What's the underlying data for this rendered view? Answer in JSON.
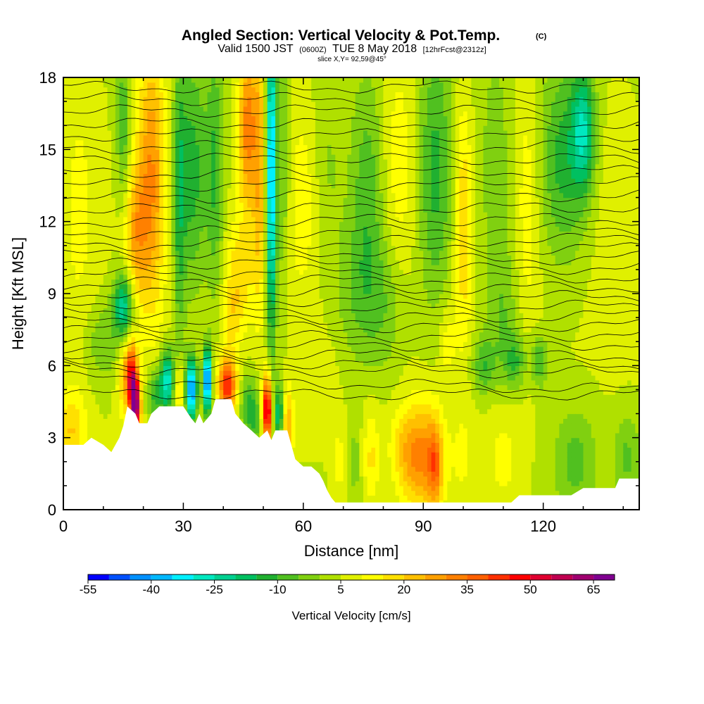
{
  "header": {
    "title": "Angled Section: Vertical Velocity & Pot.Temp.",
    "title_units": "(C)",
    "valid_prefix": "Valid 1500 JST",
    "valid_zulu": "(0600Z)",
    "valid_date": "TUE 8 May 2018",
    "forecast_note": "[12hrFcst@2312z]",
    "slice_note": "slice X,Y= 92,59@45°"
  },
  "chart_data": {
    "type": "heatmap",
    "xlabel": "Distance [nm]",
    "ylabel": "Height [Kft MSL]",
    "xlim": [
      0,
      144
    ],
    "ylim": [
      0,
      18
    ],
    "x_ticks": [
      0,
      30,
      60,
      90,
      120
    ],
    "x_tick_labels": [
      "0",
      "30",
      "60",
      "90",
      "120"
    ],
    "y_ticks": [
      0,
      3,
      6,
      9,
      12,
      15,
      18
    ],
    "y_tick_labels": [
      "0",
      "3",
      "6",
      "9",
      "12",
      "15",
      "18"
    ],
    "colorbar": {
      "title": "Vertical Velocity [cm/s]",
      "tick_values": [
        -55,
        -40,
        -25,
        -10,
        5,
        20,
        35,
        50,
        65
      ],
      "tick_labels": [
        "-55",
        "-40",
        "-25",
        "-10",
        "5",
        "20",
        "35",
        "50",
        "65"
      ],
      "levels": [
        -55,
        -50,
        -45,
        -40,
        -35,
        -30,
        -25,
        -20,
        -15,
        -10,
        -5,
        0,
        5,
        10,
        15,
        20,
        25,
        30,
        35,
        40,
        45,
        50,
        55,
        60,
        65,
        70
      ],
      "colors": [
        "#0000ff",
        "#0050ff",
        "#0090ff",
        "#00b8ff",
        "#00f0ff",
        "#00e8c0",
        "#00d090",
        "#00c060",
        "#20b030",
        "#50c020",
        "#80d010",
        "#b0e000",
        "#e0f000",
        "#ffff00",
        "#ffe000",
        "#ffc000",
        "#ffa000",
        "#ff8000",
        "#ff6000",
        "#ff3000",
        "#ff0000",
        "#e00030",
        "#c00050",
        "#a00070",
        "#800090"
      ]
    },
    "terrain": [
      [
        0,
        2.7
      ],
      [
        5,
        2.7
      ],
      [
        7,
        3.0
      ],
      [
        10,
        2.7
      ],
      [
        12,
        2.4
      ],
      [
        14,
        3.0
      ],
      [
        15,
        3.5
      ],
      [
        16,
        4.3
      ],
      [
        18,
        4.0
      ],
      [
        19,
        3.6
      ],
      [
        21,
        3.6
      ],
      [
        22,
        4.0
      ],
      [
        24,
        4.3
      ],
      [
        30,
        4.3
      ],
      [
        32,
        3.8
      ],
      [
        33,
        3.6
      ],
      [
        34,
        4.0
      ],
      [
        35,
        3.6
      ],
      [
        37,
        4.0
      ],
      [
        38,
        4.6
      ],
      [
        42,
        4.6
      ],
      [
        43,
        4.0
      ],
      [
        45,
        3.6
      ],
      [
        47,
        3.3
      ],
      [
        49,
        3.0
      ],
      [
        51,
        3.3
      ],
      [
        52,
        2.9
      ],
      [
        53,
        3.3
      ],
      [
        56,
        3.3
      ],
      [
        58,
        2.1
      ],
      [
        60,
        1.8
      ],
      [
        62,
        1.8
      ],
      [
        64,
        1.5
      ],
      [
        65,
        1.2
      ],
      [
        66,
        0.8
      ],
      [
        67,
        0.5
      ],
      [
        68,
        0.3
      ],
      [
        85,
        0.3
      ],
      [
        112,
        0.3
      ],
      [
        114,
        0.6
      ],
      [
        127,
        0.6
      ],
      [
        130,
        0.9
      ],
      [
        138,
        0.9
      ],
      [
        139,
        1.3
      ],
      [
        144,
        1.3
      ]
    ],
    "velocity_features": [
      {
        "x": 90,
        "z": 2.2,
        "sx": 3.5,
        "sz": 1.6,
        "w": 26
      },
      {
        "x": 93,
        "z": 1.8,
        "sx": 1.2,
        "sz": 1.2,
        "w": 18
      },
      {
        "x": 85,
        "z": 2.5,
        "sx": 2.5,
        "sz": 1.2,
        "w": 10
      },
      {
        "x": 77,
        "z": 2.2,
        "sx": 1.5,
        "sz": 1.4,
        "w": 11
      },
      {
        "x": 73,
        "z": 2.0,
        "sx": 1.0,
        "sz": 1.5,
        "w": -7
      },
      {
        "x": 69,
        "z": 2.0,
        "sx": 1.2,
        "sz": 1.0,
        "w": 8
      },
      {
        "x": 100,
        "z": 2.2,
        "sx": 2.0,
        "sz": 1.4,
        "w": 6
      },
      {
        "x": 110,
        "z": 2.2,
        "sx": 3.0,
        "sz": 1.6,
        "w": 7
      },
      {
        "x": 128,
        "z": 2.0,
        "sx": 4.0,
        "sz": 1.6,
        "w": -12
      },
      {
        "x": 141,
        "z": 2.2,
        "sx": 2.5,
        "sz": 1.3,
        "w": -11
      },
      {
        "x": 2,
        "z": 3.3,
        "sx": 2.5,
        "sz": 1.2,
        "w": 15
      },
      {
        "x": 18,
        "z": 4.3,
        "sx": 0.9,
        "sz": 0.9,
        "w": 58
      },
      {
        "x": 17,
        "z": 5.6,
        "sx": 1.0,
        "sz": 1.0,
        "w": 38
      },
      {
        "x": 15,
        "z": 5.5,
        "sx": 1.2,
        "sz": 1.2,
        "w": 14
      },
      {
        "x": 23,
        "z": 4.8,
        "sx": 1.4,
        "sz": 0.8,
        "w": -18
      },
      {
        "x": 26,
        "z": 5.4,
        "sx": 1.2,
        "sz": 0.9,
        "w": -34
      },
      {
        "x": 32,
        "z": 5.0,
        "sx": 1.0,
        "sz": 0.9,
        "w": -48
      },
      {
        "x": 36,
        "z": 5.4,
        "sx": 0.7,
        "sz": 0.9,
        "w": -55
      },
      {
        "x": 29,
        "z": 5.0,
        "sx": 1.0,
        "sz": 0.8,
        "w": 15
      },
      {
        "x": 41,
        "z": 5.2,
        "sx": 1.6,
        "sz": 0.8,
        "w": 40
      },
      {
        "x": 46,
        "z": 4.4,
        "sx": 1.2,
        "sz": 0.9,
        "w": -16
      },
      {
        "x": 48,
        "z": 3.8,
        "sx": 1.0,
        "sz": 1.0,
        "w": -14
      },
      {
        "x": 51,
        "z": 4.2,
        "sx": 0.8,
        "sz": 1.0,
        "w": 55
      },
      {
        "x": 54,
        "z": 4.0,
        "sx": 0.9,
        "sz": 0.9,
        "w": -25
      },
      {
        "x": 56,
        "z": 3.5,
        "sx": 1.0,
        "sz": 1.2,
        "w": 20
      },
      {
        "x": 15,
        "z": 8.5,
        "sx": 1.8,
        "sz": 1.0,
        "w": -30
      },
      {
        "x": 10,
        "z": 7.0,
        "sx": 3.0,
        "sz": 1.2,
        "w": -10
      },
      {
        "x": 52,
        "z": 14.0,
        "sx": 0.9,
        "sz": 4.8,
        "w": -45
      },
      {
        "x": 55,
        "z": 14.5,
        "sx": 1.2,
        "sz": 4.5,
        "w": -10
      },
      {
        "x": 49,
        "z": 14.5,
        "sx": 1.2,
        "sz": 4.0,
        "w": 20
      },
      {
        "x": 46,
        "z": 16.0,
        "sx": 1.5,
        "sz": 2.5,
        "w": 28
      },
      {
        "x": 32,
        "z": 14.0,
        "sx": 3.0,
        "sz": 3.5,
        "w": -18
      },
      {
        "x": 38,
        "z": 14.0,
        "sx": 1.5,
        "sz": 4.0,
        "w": -14
      },
      {
        "x": 22,
        "z": 14.0,
        "sx": 2.5,
        "sz": 4.0,
        "w": 25
      },
      {
        "x": 18,
        "z": 11.5,
        "sx": 2.0,
        "sz": 2.0,
        "w": 18
      },
      {
        "x": 15,
        "z": 16.0,
        "sx": 1.2,
        "sz": 2.5,
        "w": -14
      },
      {
        "x": 29,
        "z": 12.0,
        "sx": 1.0,
        "sz": 5.0,
        "w": -12
      },
      {
        "x": 4,
        "z": 13.0,
        "sx": 3.0,
        "sz": 4.0,
        "w": 6
      },
      {
        "x": 60,
        "z": 13.0,
        "sx": 3.0,
        "sz": 3.0,
        "w": 8
      },
      {
        "x": 66,
        "z": 14.0,
        "sx": 3.0,
        "sz": 3.5,
        "w": -6
      },
      {
        "x": 76,
        "z": 13.0,
        "sx": 3.0,
        "sz": 3.5,
        "w": -14
      },
      {
        "x": 84,
        "z": 14.5,
        "sx": 3.0,
        "sz": 3.5,
        "w": 8
      },
      {
        "x": 93,
        "z": 14.0,
        "sx": 3.0,
        "sz": 4.0,
        "w": -17
      },
      {
        "x": 100,
        "z": 12.0,
        "sx": 1.5,
        "sz": 3.5,
        "w": 15
      },
      {
        "x": 108,
        "z": 14.0,
        "sx": 3.0,
        "sz": 4.0,
        "w": -8
      },
      {
        "x": 116,
        "z": 13.0,
        "sx": 2.0,
        "sz": 4.0,
        "w": 8
      },
      {
        "x": 125,
        "z": 14.5,
        "sx": 4.0,
        "sz": 3.0,
        "w": -17
      },
      {
        "x": 130,
        "z": 15.8,
        "sx": 2.0,
        "sz": 1.8,
        "w": -26
      },
      {
        "x": 138,
        "z": 12.0,
        "sx": 3.0,
        "sz": 3.0,
        "w": 4
      },
      {
        "x": 80,
        "z": 8.5,
        "sx": 4.0,
        "sz": 2.0,
        "w": -10
      },
      {
        "x": 72,
        "z": 9.0,
        "sx": 3.0,
        "sz": 2.0,
        "w": -7
      },
      {
        "x": 110,
        "z": 8.0,
        "sx": 3.0,
        "sz": 2.0,
        "w": -9
      },
      {
        "x": 105,
        "z": 6.0,
        "sx": 2.0,
        "sz": 0.8,
        "w": -14
      },
      {
        "x": 113,
        "z": 6.2,
        "sx": 2.0,
        "sz": 0.8,
        "w": -14
      },
      {
        "x": 119,
        "z": 6.2,
        "sx": 1.5,
        "sz": 0.8,
        "w": -15
      },
      {
        "x": 96,
        "z": 7.0,
        "sx": 1.5,
        "sz": 1.2,
        "w": 8
      },
      {
        "x": 64,
        "z": 5.5,
        "sx": 3.0,
        "sz": 1.2,
        "w": 4
      },
      {
        "x": 44,
        "z": 10.0,
        "sx": 2.5,
        "sz": 1.5,
        "w": 12
      },
      {
        "x": 42,
        "z": 8.0,
        "sx": 2.0,
        "sz": 1.0,
        "w": 10
      }
    ],
    "theta_levels": [
      {
        "z0": 4.8,
        "z1": 4.8
      },
      {
        "z0": 5.5,
        "z1": 5.0
      },
      {
        "z0": 5.9,
        "z1": 5.7
      },
      {
        "z0": 6.2,
        "z1": 6.0
      },
      {
        "z0": 6.5,
        "z1": 6.4
      },
      {
        "z0": 6.8,
        "z1": 6.9
      },
      {
        "z0": 7.1,
        "z1": 7.3
      },
      {
        "z0": 7.5,
        "z1": 7.7
      },
      {
        "z0": 7.8,
        "z1": 8.1
      },
      {
        "z0": 8.2,
        "z1": 8.5
      },
      {
        "z0": 8.6,
        "z1": 8.9
      },
      {
        "z0": 9.0,
        "z1": 9.3
      },
      {
        "z0": 9.4,
        "z1": 9.7
      },
      {
        "z0": 9.8,
        "z1": 10.1
      },
      {
        "z0": 10.2,
        "z1": 10.5
      },
      {
        "z0": 10.6,
        "z1": 10.9
      },
      {
        "z0": 11.0,
        "z1": 11.3
      },
      {
        "z0": 11.5,
        "z1": 11.7
      },
      {
        "z0": 12.0,
        "z1": 12.1
      },
      {
        "z0": 12.5,
        "z1": 12.6
      },
      {
        "z0": 13.0,
        "z1": 13.1
      },
      {
        "z0": 13.5,
        "z1": 13.6
      },
      {
        "z0": 14.0,
        "z1": 14.1
      },
      {
        "z0": 14.6,
        "z1": 14.6
      },
      {
        "z0": 15.1,
        "z1": 15.1
      },
      {
        "z0": 15.6,
        "z1": 15.6
      },
      {
        "z0": 16.1,
        "z1": 16.1
      },
      {
        "z0": 16.6,
        "z1": 16.6
      },
      {
        "z0": 17.1,
        "z1": 17.1
      },
      {
        "z0": 17.6,
        "z1": 17.6
      }
    ],
    "colors": {
      "background": "#ffffff",
      "terrain": "#ffffff",
      "contour": "#000000",
      "frame": "#000000"
    }
  }
}
